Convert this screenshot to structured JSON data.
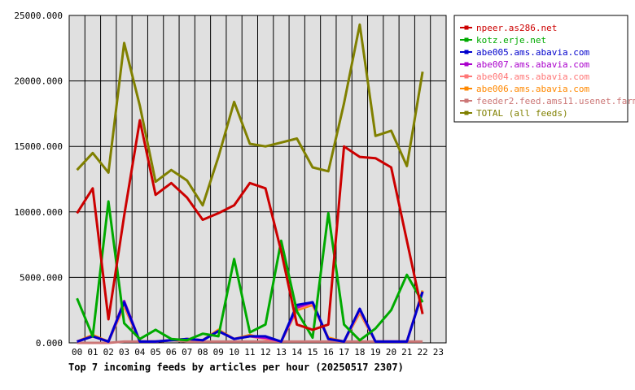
{
  "chart_data": {
    "type": "line",
    "title": "Top 7 incoming feeds by articles per hour (20250517 2307)",
    "xlabel": "",
    "ylabel": "",
    "ylim": [
      0,
      25000
    ],
    "yticks": [
      "0.000",
      "5000.000",
      "10000.000",
      "15000.000",
      "20000.000",
      "25000.000"
    ],
    "x": [
      "00",
      "01",
      "02",
      "03",
      "04",
      "05",
      "06",
      "07",
      "08",
      "09",
      "10",
      "11",
      "12",
      "13",
      "14",
      "15",
      "16",
      "17",
      "18",
      "19",
      "20",
      "21",
      "22",
      "23"
    ],
    "grid": true,
    "legend": "right",
    "series": [
      {
        "name": "npeer.as286.net",
        "color": "#cc0000",
        "values": [
          9900,
          11800,
          1800,
          9700,
          17000,
          11300,
          12200,
          11100,
          9400,
          9900,
          10500,
          12200,
          11800,
          7000,
          1400,
          1000,
          1400,
          15000,
          14200,
          14100,
          13400,
          7800,
          2200,
          null
        ]
      },
      {
        "name": "kotz.erje.net",
        "color": "#00aa00",
        "values": [
          3400,
          500,
          10800,
          1500,
          300,
          1000,
          300,
          200,
          700,
          500,
          6400,
          800,
          1400,
          7800,
          2400,
          400,
          9900,
          1400,
          200,
          1100,
          2500,
          5200,
          3100,
          null
        ]
      },
      {
        "name": "abe005.ams.abavia.com",
        "color": "#0000cc",
        "values": [
          100,
          500,
          100,
          3100,
          100,
          100,
          200,
          300,
          200,
          900,
          300,
          500,
          500,
          100,
          2900,
          3100,
          300,
          100,
          2600,
          100,
          100,
          100,
          3900,
          null
        ]
      },
      {
        "name": "abe007.ams.abavia.com",
        "color": "#aa00cc",
        "values": [
          100,
          500,
          100,
          3200,
          100,
          100,
          200,
          300,
          200,
          900,
          300,
          500,
          400,
          100,
          2700,
          3100,
          300,
          100,
          2600,
          100,
          100,
          100,
          3900,
          null
        ]
      },
      {
        "name": "abe004.ams.abavia.com",
        "color": "#ff7777",
        "values": [
          100,
          500,
          100,
          2900,
          100,
          100,
          200,
          300,
          200,
          900,
          300,
          500,
          300,
          100,
          2600,
          3000,
          300,
          100,
          2400,
          100,
          100,
          100,
          3900,
          null
        ]
      },
      {
        "name": "abe006.ams.abavia.com",
        "color": "#ff8800",
        "values": [
          100,
          600,
          100,
          2800,
          100,
          100,
          200,
          300,
          200,
          1000,
          300,
          600,
          300,
          100,
          2500,
          2900,
          400,
          100,
          2300,
          100,
          100,
          100,
          4000,
          null
        ]
      },
      {
        "name": "feeder2.feed.ams11.usenet.farm",
        "color": "#cc7777",
        "values": [
          0,
          0,
          0,
          100,
          100,
          100,
          200,
          100,
          100,
          100,
          100,
          100,
          100,
          100,
          100,
          100,
          100,
          100,
          100,
          100,
          100,
          100,
          100,
          null
        ]
      },
      {
        "name": "TOTAL (all feeds)",
        "color": "#808000",
        "values": [
          13200,
          14500,
          13000,
          22900,
          18100,
          12300,
          13200,
          12400,
          10500,
          14200,
          18400,
          15200,
          15000,
          15300,
          15600,
          13400,
          13100,
          18300,
          24300,
          15800,
          16200,
          13500,
          20700,
          null
        ]
      }
    ]
  }
}
